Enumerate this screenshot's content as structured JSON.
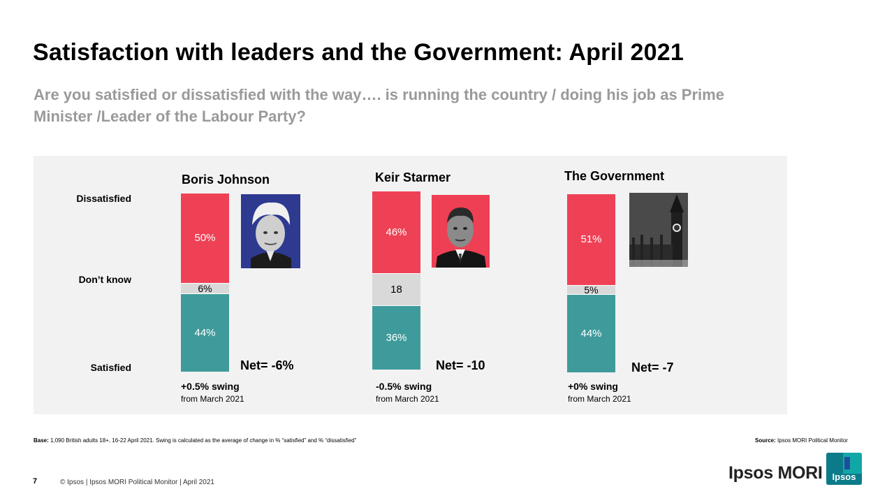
{
  "slide": {
    "title": "Satisfaction with leaders and the Government: April 2021",
    "subtitle": "Are you satisfied or dissatisfied with the way…. is running the country / doing his job as Prime Minister /Leader of the Labour Party?",
    "page_number": "7",
    "copyright": "© Ipsos | Ipsos MORI Political Monitor | April 2021",
    "brand_text": "Ipsos MORI",
    "logo_text": "Ipsos"
  },
  "footnote": {
    "base_label": "Base:",
    "base_text": "1,090 British adults 18+, 16-22 April 2021. Swing is calculated as the average of change in % “satisfied” and % “dissatisfied”",
    "source_label": "Source:",
    "source_text": "Ipsos MORI Political Monitor"
  },
  "colors": {
    "dissatisfied": "#ef4155",
    "dont_know": "#d9d9d9",
    "satisfied": "#3f9b9b",
    "panel_bg": "#f2f2f2",
    "subtitle": "#9a9a9a"
  },
  "chart_data": {
    "type": "bar",
    "stacked": true,
    "row_labels": [
      "Dissatisfied",
      "Don’t know",
      "Satisfied"
    ],
    "categories": [
      "Boris Johnson",
      "Keir Starmer",
      "The Government"
    ],
    "series": [
      {
        "name": "Dissatisfied",
        "values": [
          50,
          46,
          51
        ],
        "labels": [
          "50%",
          "46%",
          "51%"
        ]
      },
      {
        "name": "Don’t know",
        "values": [
          6,
          18,
          5
        ],
        "labels": [
          "6%",
          "18",
          "5%"
        ]
      },
      {
        "name": "Satisfied",
        "values": [
          44,
          36,
          44
        ],
        "labels": [
          "44%",
          "36%",
          "44%"
        ]
      }
    ],
    "net": [
      "Net= -6%",
      "Net= -10",
      "Net= -7"
    ],
    "swing": [
      "+0.5% swing",
      "-0.5% swing",
      "+0% swing"
    ],
    "swing_note": [
      "from March 2021",
      "from March 2021",
      "from March 2021"
    ],
    "ylim": [
      0,
      100
    ],
    "grid": false
  }
}
